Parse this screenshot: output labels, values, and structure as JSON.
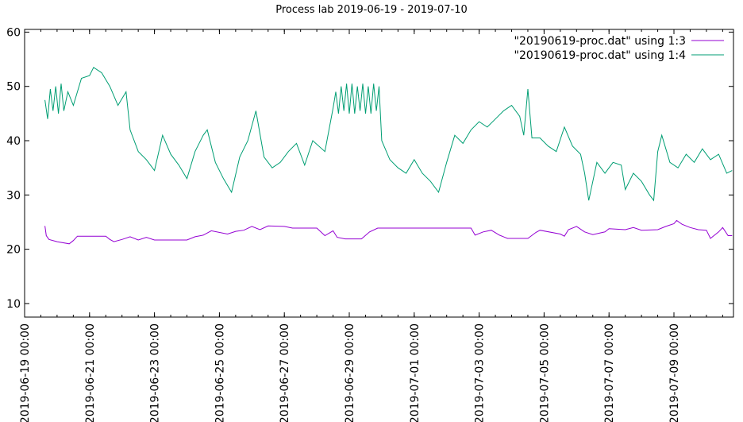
{
  "chart_data": {
    "type": "line",
    "title": "Process lab 2019-06-19 - 2019-07-10",
    "xlabel": "",
    "ylabel": "",
    "xlim": [
      "2019-06-19 00:00",
      "2019-07-10 20:00"
    ],
    "ylim": [
      7.5,
      60.5
    ],
    "y_ticks": [
      10,
      20,
      30,
      40,
      50,
      60
    ],
    "x_ticks": [
      "2019-06-19 00:00",
      "2019-06-21 00:00",
      "2019-06-23 00:00",
      "2019-06-25 00:00",
      "2019-06-27 00:00",
      "2019-06-29 00:00",
      "2019-07-01 00:00",
      "2019-07-03 00:00",
      "2019-07-05 00:00",
      "2019-07-07 00:00",
      "2019-07-09 00:00"
    ],
    "grid": false,
    "legend_position": "top-right",
    "series": [
      {
        "name": "\"20190619-proc.dat\" using 1:3",
        "color": "#9400d3",
        "points": [
          [
            "2019-06-19 15:00",
            24.3
          ],
          [
            "2019-06-19 16:00",
            22.5
          ],
          [
            "2019-06-19 18:00",
            21.8
          ],
          [
            "2019-06-20 00:00",
            21.4
          ],
          [
            "2019-06-20 09:00",
            21.0
          ],
          [
            "2019-06-20 12:00",
            21.6
          ],
          [
            "2019-06-20 15:00",
            22.4
          ],
          [
            "2019-06-21 12:00",
            22.4
          ],
          [
            "2019-06-21 15:00",
            21.8
          ],
          [
            "2019-06-21 18:00",
            21.4
          ],
          [
            "2019-06-22 00:00",
            21.8
          ],
          [
            "2019-06-22 06:00",
            22.3
          ],
          [
            "2019-06-22 12:00",
            21.7
          ],
          [
            "2019-06-22 18:00",
            22.2
          ],
          [
            "2019-06-23 00:00",
            21.7
          ],
          [
            "2019-06-24 00:00",
            21.7
          ],
          [
            "2019-06-24 06:00",
            22.3
          ],
          [
            "2019-06-24 12:00",
            22.6
          ],
          [
            "2019-06-24 18:00",
            23.4
          ],
          [
            "2019-06-25 06:00",
            22.8
          ],
          [
            "2019-06-25 12:00",
            23.3
          ],
          [
            "2019-06-25 18:00",
            23.5
          ],
          [
            "2019-06-26 00:00",
            24.2
          ],
          [
            "2019-06-26 06:00",
            23.6
          ],
          [
            "2019-06-26 12:00",
            24.3
          ],
          [
            "2019-06-27 00:00",
            24.2
          ],
          [
            "2019-06-27 06:00",
            23.9
          ],
          [
            "2019-06-28 00:00",
            23.9
          ],
          [
            "2019-06-28 06:00",
            22.5
          ],
          [
            "2019-06-28 12:00",
            23.4
          ],
          [
            "2019-06-28 15:00",
            22.2
          ],
          [
            "2019-06-28 21:00",
            21.9
          ],
          [
            "2019-06-29 09:00",
            21.9
          ],
          [
            "2019-06-29 15:00",
            23.2
          ],
          [
            "2019-06-29 21:00",
            23.9
          ],
          [
            "2019-07-02 18:00",
            23.9
          ],
          [
            "2019-07-02 21:00",
            22.6
          ],
          [
            "2019-07-03 03:00",
            23.2
          ],
          [
            "2019-07-03 09:00",
            23.5
          ],
          [
            "2019-07-03 15:00",
            22.6
          ],
          [
            "2019-07-03 21:00",
            22.0
          ],
          [
            "2019-07-04 12:00",
            22.0
          ],
          [
            "2019-07-04 18:00",
            23.1
          ],
          [
            "2019-07-04 21:00",
            23.5
          ],
          [
            "2019-07-05 12:00",
            22.8
          ],
          [
            "2019-07-05 15:00",
            22.4
          ],
          [
            "2019-07-05 18:00",
            23.6
          ],
          [
            "2019-07-06 00:00",
            24.2
          ],
          [
            "2019-07-06 06:00",
            23.2
          ],
          [
            "2019-07-06 12:00",
            22.7
          ],
          [
            "2019-07-06 21:00",
            23.2
          ],
          [
            "2019-07-07 00:00",
            23.8
          ],
          [
            "2019-07-07 12:00",
            23.6
          ],
          [
            "2019-07-07 18:00",
            24.0
          ],
          [
            "2019-07-08 00:00",
            23.5
          ],
          [
            "2019-07-08 12:00",
            23.6
          ],
          [
            "2019-07-08 18:00",
            24.2
          ],
          [
            "2019-07-09 00:00",
            24.7
          ],
          [
            "2019-07-09 02:00",
            25.3
          ],
          [
            "2019-07-09 06:00",
            24.6
          ],
          [
            "2019-07-09 12:00",
            24.0
          ],
          [
            "2019-07-09 18:00",
            23.6
          ],
          [
            "2019-07-10 00:00",
            23.5
          ],
          [
            "2019-07-10 03:00",
            22.0
          ],
          [
            "2019-07-10 09:00",
            23.2
          ],
          [
            "2019-07-10 12:00",
            24.0
          ],
          [
            "2019-07-10 16:00",
            22.5
          ],
          [
            "2019-07-10 19:00",
            22.5
          ]
        ]
      },
      {
        "name": "\"20190619-proc.dat\" using 1:4",
        "color": "#009e73",
        "points": [
          [
            "2019-06-19 15:00",
            47.5
          ],
          [
            "2019-06-19 17:00",
            44.0
          ],
          [
            "2019-06-19 19:00",
            49.5
          ],
          [
            "2019-06-19 21:00",
            45.5
          ],
          [
            "2019-06-19 23:00",
            50.0
          ],
          [
            "2019-06-20 01:00",
            45.0
          ],
          [
            "2019-06-20 03:00",
            50.5
          ],
          [
            "2019-06-20 05:00",
            45.5
          ],
          [
            "2019-06-20 08:00",
            49.0
          ],
          [
            "2019-06-20 12:00",
            46.5
          ],
          [
            "2019-06-20 18:00",
            51.5
          ],
          [
            "2019-06-21 00:00",
            52.0
          ],
          [
            "2019-06-21 03:00",
            53.5
          ],
          [
            "2019-06-21 09:00",
            52.5
          ],
          [
            "2019-06-21 15:00",
            50.0
          ],
          [
            "2019-06-21 21:00",
            46.5
          ],
          [
            "2019-06-22 03:00",
            49.0
          ],
          [
            "2019-06-22 06:00",
            42.0
          ],
          [
            "2019-06-22 12:00",
            38.0
          ],
          [
            "2019-06-22 18:00",
            36.5
          ],
          [
            "2019-06-23 00:00",
            34.5
          ],
          [
            "2019-06-23 06:00",
            41.0
          ],
          [
            "2019-06-23 12:00",
            37.5
          ],
          [
            "2019-06-23 18:00",
            35.5
          ],
          [
            "2019-06-24 00:00",
            33.0
          ],
          [
            "2019-06-24 06:00",
            38.0
          ],
          [
            "2019-06-24 12:00",
            41.0
          ],
          [
            "2019-06-24 15:00",
            42.0
          ],
          [
            "2019-06-24 21:00",
            36.0
          ],
          [
            "2019-06-25 03:00",
            33.0
          ],
          [
            "2019-06-25 09:00",
            30.5
          ],
          [
            "2019-06-25 15:00",
            37.0
          ],
          [
            "2019-06-25 21:00",
            40.0
          ],
          [
            "2019-06-26 03:00",
            45.5
          ],
          [
            "2019-06-26 09:00",
            37.0
          ],
          [
            "2019-06-26 15:00",
            35.0
          ],
          [
            "2019-06-26 21:00",
            36.0
          ],
          [
            "2019-06-27 03:00",
            38.0
          ],
          [
            "2019-06-27 09:00",
            39.5
          ],
          [
            "2019-06-27 15:00",
            35.5
          ],
          [
            "2019-06-27 21:00",
            40.0
          ],
          [
            "2019-06-28 06:00",
            38.0
          ],
          [
            "2019-06-28 12:00",
            46.0
          ],
          [
            "2019-06-28 14:00",
            49.0
          ],
          [
            "2019-06-28 16:00",
            45.0
          ],
          [
            "2019-06-28 18:00",
            50.0
          ],
          [
            "2019-06-28 20:00",
            45.5
          ],
          [
            "2019-06-28 22:00",
            50.5
          ],
          [
            "2019-06-29 00:00",
            45.0
          ],
          [
            "2019-06-29 02:00",
            50.5
          ],
          [
            "2019-06-29 04:00",
            45.0
          ],
          [
            "2019-06-29 06:00",
            50.0
          ],
          [
            "2019-06-29 08:00",
            45.5
          ],
          [
            "2019-06-29 10:00",
            50.5
          ],
          [
            "2019-06-29 12:00",
            45.0
          ],
          [
            "2019-06-29 14:00",
            50.0
          ],
          [
            "2019-06-29 16:00",
            45.0
          ],
          [
            "2019-06-29 18:00",
            50.5
          ],
          [
            "2019-06-29 20:00",
            45.5
          ],
          [
            "2019-06-29 22:00",
            50.0
          ],
          [
            "2019-06-30 00:00",
            40.0
          ],
          [
            "2019-06-30 06:00",
            36.5
          ],
          [
            "2019-06-30 12:00",
            35.0
          ],
          [
            "2019-06-30 18:00",
            34.0
          ],
          [
            "2019-07-01 00:00",
            36.5
          ],
          [
            "2019-07-01 06:00",
            34.0
          ],
          [
            "2019-07-01 12:00",
            32.5
          ],
          [
            "2019-07-01 18:00",
            30.5
          ],
          [
            "2019-07-02 00:00",
            36.0
          ],
          [
            "2019-07-02 06:00",
            41.0
          ],
          [
            "2019-07-02 12:00",
            39.5
          ],
          [
            "2019-07-02 18:00",
            42.0
          ],
          [
            "2019-07-03 00:00",
            43.5
          ],
          [
            "2019-07-03 06:00",
            42.5
          ],
          [
            "2019-07-03 12:00",
            44.0
          ],
          [
            "2019-07-03 18:00",
            45.5
          ],
          [
            "2019-07-04 00:00",
            46.5
          ],
          [
            "2019-07-04 06:00",
            44.5
          ],
          [
            "2019-07-04 09:00",
            41.0
          ],
          [
            "2019-07-04 12:00",
            49.5
          ],
          [
            "2019-07-04 15:00",
            40.5
          ],
          [
            "2019-07-04 21:00",
            40.5
          ],
          [
            "2019-07-05 03:00",
            39.0
          ],
          [
            "2019-07-05 09:00",
            38.0
          ],
          [
            "2019-07-05 15:00",
            42.5
          ],
          [
            "2019-07-05 21:00",
            39.0
          ],
          [
            "2019-07-06 03:00",
            37.5
          ],
          [
            "2019-07-06 06:00",
            34.0
          ],
          [
            "2019-07-06 09:00",
            29.0
          ],
          [
            "2019-07-06 15:00",
            36.0
          ],
          [
            "2019-07-06 21:00",
            34.0
          ],
          [
            "2019-07-07 03:00",
            36.0
          ],
          [
            "2019-07-07 09:00",
            35.5
          ],
          [
            "2019-07-07 12:00",
            31.0
          ],
          [
            "2019-07-07 18:00",
            34.0
          ],
          [
            "2019-07-08 00:00",
            32.5
          ],
          [
            "2019-07-08 06:00",
            30.0
          ],
          [
            "2019-07-08 09:00",
            29.0
          ],
          [
            "2019-07-08 12:00",
            38.0
          ],
          [
            "2019-07-08 15:00",
            41.0
          ],
          [
            "2019-07-08 21:00",
            36.0
          ],
          [
            "2019-07-09 03:00",
            35.0
          ],
          [
            "2019-07-09 09:00",
            37.5
          ],
          [
            "2019-07-09 15:00",
            36.0
          ],
          [
            "2019-07-09 21:00",
            38.5
          ],
          [
            "2019-07-10 03:00",
            36.5
          ],
          [
            "2019-07-10 09:00",
            37.5
          ],
          [
            "2019-07-10 15:00",
            34.0
          ],
          [
            "2019-07-10 19:00",
            34.5
          ]
        ]
      }
    ]
  }
}
